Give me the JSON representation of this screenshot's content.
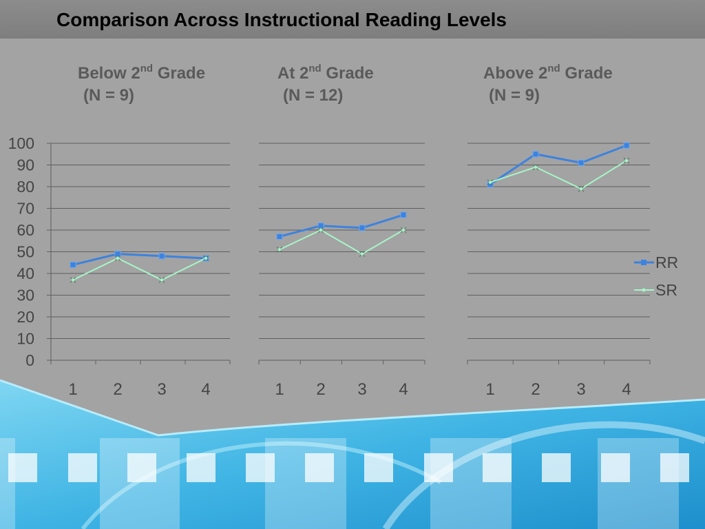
{
  "slide": {
    "title": "Comparison Across Instructional Reading Levels"
  },
  "colors": {
    "rr": "#3d82de",
    "sr": "#a6f5c8",
    "grid": "#5e5e5e",
    "tick_text": "#444444"
  },
  "chart_data": [
    {
      "type": "line",
      "heading_main": "Below 2",
      "heading_sup": "nd",
      "heading_rest": " Grade",
      "heading_n": "(N = 9)",
      "categories": [
        "1",
        "2",
        "3",
        "4"
      ],
      "ylim": [
        0,
        100
      ],
      "yticks": [
        "0",
        "10",
        "20",
        "30",
        "40",
        "50",
        "60",
        "70",
        "80",
        "90",
        "100"
      ],
      "series": [
        {
          "name": "RR",
          "values": [
            44,
            49,
            48,
            47
          ]
        },
        {
          "name": "SR",
          "values": [
            37,
            47,
            37,
            47
          ]
        }
      ]
    },
    {
      "type": "line",
      "heading_main": "At 2",
      "heading_sup": "nd",
      "heading_rest": " Grade",
      "heading_n": "(N = 12)",
      "categories": [
        "1",
        "2",
        "3",
        "4"
      ],
      "ylim": [
        0,
        100
      ],
      "series": [
        {
          "name": "RR",
          "values": [
            57,
            62,
            61,
            67
          ]
        },
        {
          "name": "SR",
          "values": [
            51,
            60,
            49,
            60
          ]
        }
      ]
    },
    {
      "type": "line",
      "heading_main": "Above 2",
      "heading_sup": "nd",
      "heading_rest": " Grade",
      "heading_n": "(N = 9)",
      "categories": [
        "1",
        "2",
        "3",
        "4"
      ],
      "ylim": [
        0,
        100
      ],
      "series": [
        {
          "name": "RR",
          "values": [
            81,
            95,
            91,
            99
          ]
        },
        {
          "name": "SR",
          "values": [
            82,
            89,
            79,
            92
          ]
        }
      ]
    }
  ],
  "legend": {
    "placement": "right",
    "items": [
      {
        "label": "RR",
        "series": "rr"
      },
      {
        "label": "SR",
        "series": "sr"
      }
    ]
  }
}
